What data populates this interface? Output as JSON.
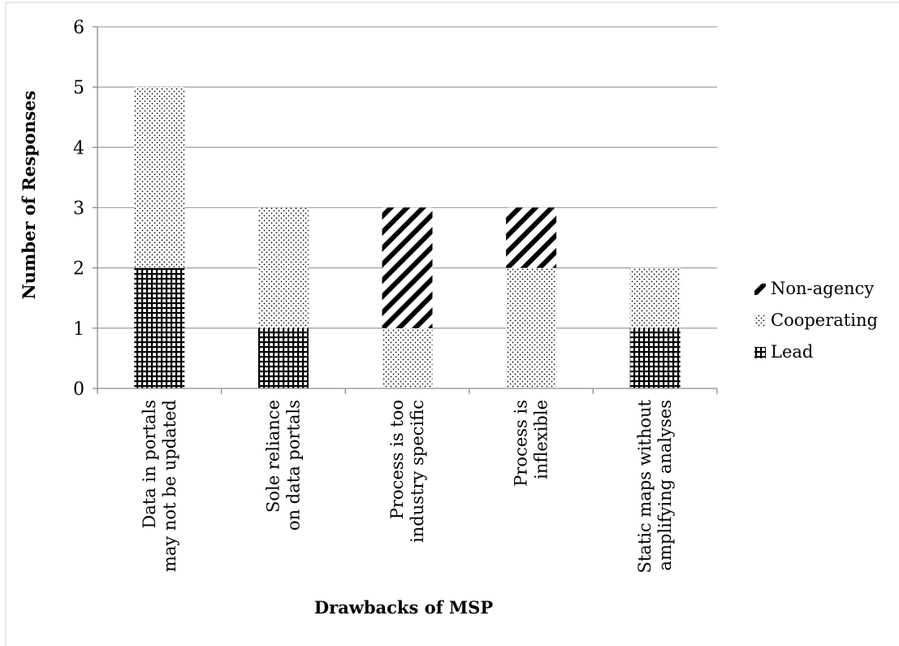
{
  "chart_data": {
    "type": "bar",
    "stacked": true,
    "title": "",
    "xlabel": "Drawbacks of MSP",
    "ylabel": "Number of Responses",
    "ylim": [
      0,
      6
    ],
    "yticks": [
      "0",
      "1",
      "2",
      "3",
      "4",
      "5",
      "6"
    ],
    "grid": true,
    "legend_position": "right",
    "categories": [
      [
        "Data in portals",
        "may not be updated"
      ],
      [
        "Sole reliance",
        "on data portals"
      ],
      [
        "Process is too",
        "industry specific"
      ],
      [
        "Process is",
        "inflexible"
      ],
      [
        "Static maps without",
        "amplifying analyses"
      ]
    ],
    "series": [
      {
        "name": "Lead",
        "values": [
          2,
          1,
          0,
          0,
          1
        ],
        "pattern": "grid"
      },
      {
        "name": "Cooperating",
        "values": [
          3,
          2,
          1,
          2,
          1
        ],
        "pattern": "dots"
      },
      {
        "name": "Non-agency",
        "values": [
          0,
          0,
          2,
          1,
          0
        ],
        "pattern": "diagonal"
      }
    ],
    "legend_order": [
      "Non-agency",
      "Cooperating",
      "Lead"
    ],
    "colors": {
      "gridline": "#a6a6a6",
      "axis": "#8c8c8c",
      "ink": "#000000"
    }
  }
}
